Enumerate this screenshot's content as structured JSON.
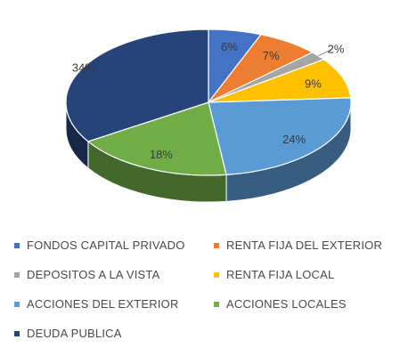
{
  "chart_data": {
    "type": "pie",
    "title": "",
    "labels": [
      "FONDOS CAPITAL PRIVADO",
      "RENTA FIJA DEL EXTERIOR",
      "DEPOSITOS A LA VISTA",
      "RENTA FIJA LOCAL",
      "ACCIONES DEL EXTERIOR",
      "ACCIONES LOCALES",
      "DEUDA PUBLICA"
    ],
    "values": [
      6,
      7,
      2,
      9,
      24,
      18,
      34
    ],
    "data_labels": [
      "6%",
      "7%",
      "2%",
      "9%",
      "24%",
      "18%",
      "34%"
    ],
    "colors": [
      "#4472C4",
      "#ED7D31",
      "#A5A5A5",
      "#FFC000",
      "#5B9BD5",
      "#70AD47",
      "#264478"
    ],
    "style": "3d",
    "legend_position": "bottom"
  }
}
